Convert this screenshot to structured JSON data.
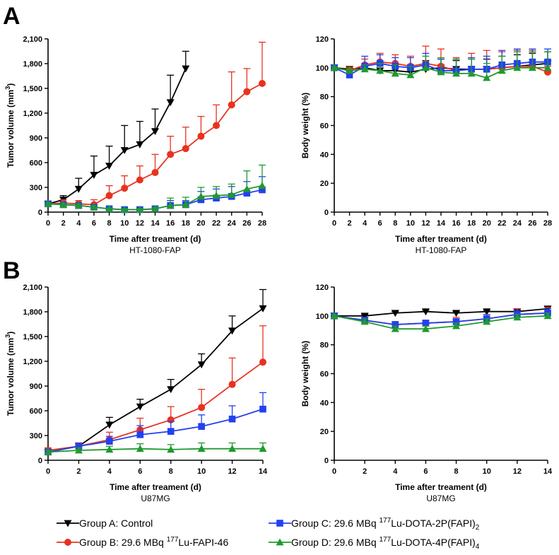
{
  "panels": [
    {
      "label": "A",
      "subtitle": "HT-1080-FAP"
    },
    {
      "label": "B",
      "subtitle": "U87MG"
    }
  ],
  "colors": {
    "A": "#000000",
    "B": "#e8321f",
    "C": "#2340ee",
    "D": "#1f9a2e"
  },
  "legend": {
    "A": {
      "main": "Group A: Control"
    },
    "B": {
      "main": "Group B: 29.6 MBq ",
      "sup": "177",
      "rest": "Lu-FAPI-46"
    },
    "C": {
      "main": "Group C: 29.6 MBq ",
      "sup": "177",
      "rest": "Lu-DOTA-2P(FAPI)",
      "sub": "2"
    },
    "D": {
      "main": "Group D: 29.6 MBq ",
      "sup": "177",
      "rest": "Lu-DOTA-4P(FAPI)",
      "sub": "4"
    }
  },
  "chart_data": [
    {
      "id": "tumorA",
      "type": "line",
      "xlabel": "Time after treament (d)",
      "ylabel": "Tumor volume (mm",
      "ylabel_sup": "3",
      "ylabel_end": ")",
      "subtitle": "HT-1080-FAP",
      "xlim": [
        0,
        28
      ],
      "ylim": [
        0,
        2100
      ],
      "xticks": [
        0,
        2,
        4,
        6,
        8,
        10,
        12,
        14,
        16,
        18,
        20,
        22,
        24,
        26,
        28
      ],
      "yticks": [
        0,
        300,
        600,
        900,
        1200,
        1500,
        1800,
        2100
      ],
      "ytick_labels": [
        "0",
        "300",
        "600",
        "900",
        "1,200",
        "1,500",
        "1,800",
        "2,100"
      ],
      "series": [
        {
          "group": "A",
          "marker": "triangle-down",
          "x": [
            0,
            2,
            4,
            6,
            8,
            10,
            12,
            14,
            16,
            18
          ],
          "y": [
            100,
            150,
            280,
            450,
            560,
            750,
            820,
            980,
            1330,
            1740
          ],
          "err": [
            10,
            50,
            130,
            230,
            240,
            300,
            280,
            270,
            330,
            210
          ]
        },
        {
          "group": "B",
          "marker": "circle",
          "x": [
            0,
            2,
            4,
            6,
            8,
            10,
            12,
            14,
            16,
            18,
            20,
            22,
            24,
            26,
            28
          ],
          "y": [
            100,
            110,
            100,
            90,
            200,
            290,
            390,
            480,
            700,
            770,
            920,
            1050,
            1300,
            1460,
            1560
          ],
          "err": [
            10,
            40,
            40,
            60,
            120,
            150,
            170,
            220,
            220,
            260,
            240,
            250,
            400,
            280,
            500
          ]
        },
        {
          "group": "C",
          "marker": "square",
          "x": [
            0,
            2,
            4,
            6,
            8,
            10,
            12,
            14,
            16,
            18,
            20,
            22,
            24,
            26,
            28
          ],
          "y": [
            100,
            90,
            80,
            60,
            40,
            30,
            30,
            40,
            80,
            90,
            150,
            170,
            190,
            230,
            270
          ],
          "err": [
            10,
            20,
            20,
            20,
            10,
            10,
            10,
            20,
            60,
            50,
            100,
            110,
            120,
            140,
            160
          ]
        },
        {
          "group": "D",
          "marker": "triangle-up",
          "x": [
            0,
            2,
            4,
            6,
            8,
            10,
            12,
            14,
            16,
            18,
            20,
            22,
            24,
            26,
            28
          ],
          "y": [
            100,
            90,
            80,
            60,
            40,
            30,
            30,
            40,
            80,
            90,
            190,
            200,
            210,
            280,
            320
          ],
          "err": [
            10,
            20,
            20,
            20,
            10,
            10,
            10,
            20,
            90,
            90,
            110,
            110,
            130,
            220,
            250
          ]
        }
      ]
    },
    {
      "id": "weightA",
      "type": "line",
      "xlabel": "Time after treament (d)",
      "ylabel": "Body weight (%)",
      "subtitle": "HT-1080-FAP",
      "xlim": [
        0,
        28
      ],
      "ylim": [
        0,
        120
      ],
      "xticks": [
        0,
        2,
        4,
        6,
        8,
        10,
        12,
        14,
        16,
        18,
        20,
        22,
        24,
        26,
        28
      ],
      "yticks": [
        0,
        20,
        40,
        60,
        80,
        100,
        120
      ],
      "ytick_labels": [
        "0",
        "20",
        "40",
        "60",
        "80",
        "100",
        "120"
      ],
      "series": [
        {
          "group": "A",
          "marker": "triangle-down",
          "x": [
            0,
            2,
            4,
            6,
            8,
            10,
            12,
            14,
            16,
            18,
            20,
            22,
            24,
            26,
            28
          ],
          "y": [
            100,
            99,
            100,
            98,
            98,
            97,
            99,
            100,
            99,
            99,
            99,
            100,
            101,
            102,
            103
          ],
          "err": [
            1,
            2,
            2,
            4,
            4,
            5,
            6,
            6,
            6,
            7,
            7,
            8,
            8,
            8,
            8
          ]
        },
        {
          "group": "B",
          "marker": "circle",
          "x": [
            0,
            2,
            4,
            6,
            8,
            10,
            12,
            14,
            16,
            18,
            20,
            22,
            24,
            26,
            28
          ],
          "y": [
            100,
            98,
            102,
            104,
            103,
            101,
            103,
            101,
            98,
            99,
            99,
            100,
            101,
            101,
            97
          ],
          "err": [
            1,
            3,
            4,
            6,
            6,
            7,
            12,
            12,
            9,
            11,
            13,
            11,
            11,
            11,
            4
          ]
        },
        {
          "group": "C",
          "marker": "square",
          "x": [
            0,
            2,
            4,
            6,
            8,
            10,
            12,
            14,
            16,
            18,
            20,
            22,
            24,
            26,
            28
          ],
          "y": [
            100,
            95,
            101,
            103,
            101,
            100,
            102,
            98,
            98,
            99,
            99,
            102,
            103,
            104,
            104
          ],
          "err": [
            1,
            3,
            7,
            6,
            6,
            7,
            8,
            8,
            8,
            8,
            9,
            10,
            10,
            9,
            9
          ]
        },
        {
          "group": "D",
          "marker": "triangle-up",
          "x": [
            0,
            2,
            4,
            6,
            8,
            10,
            12,
            14,
            16,
            18,
            20,
            22,
            24,
            26,
            28
          ],
          "y": [
            100,
            98,
            99,
            98,
            96,
            95,
            100,
            97,
            96,
            96,
            93,
            98,
            100,
            100,
            100
          ],
          "err": [
            1,
            2,
            3,
            5,
            6,
            6,
            8,
            10,
            10,
            10,
            10,
            10,
            11,
            11,
            11
          ]
        }
      ]
    },
    {
      "id": "tumorB",
      "type": "line",
      "xlabel": "Time after treament (d)",
      "ylabel": "Tumor volume (mm",
      "ylabel_sup": "3",
      "ylabel_end": ")",
      "subtitle": "U87MG",
      "xlim": [
        0,
        14
      ],
      "ylim": [
        0,
        2100
      ],
      "xticks": [
        0,
        2,
        4,
        6,
        8,
        10,
        12,
        14
      ],
      "yticks": [
        0,
        300,
        600,
        900,
        1200,
        1500,
        1800,
        2100
      ],
      "ytick_labels": [
        "0",
        "300",
        "600",
        "900",
        "1,200",
        "1,500",
        "1,800",
        "2,100"
      ],
      "series": [
        {
          "group": "A",
          "marker": "triangle-down",
          "x": [
            0,
            2,
            4,
            6,
            8,
            10,
            12,
            14
          ],
          "y": [
            100,
            170,
            430,
            650,
            860,
            1160,
            1570,
            1840
          ],
          "err": [
            20,
            40,
            90,
            90,
            120,
            130,
            180,
            230
          ]
        },
        {
          "group": "B",
          "marker": "circle",
          "x": [
            0,
            2,
            4,
            6,
            8,
            10,
            12,
            14
          ],
          "y": [
            120,
            170,
            250,
            370,
            490,
            640,
            920,
            1190
          ],
          "err": [
            30,
            40,
            90,
            140,
            160,
            220,
            320,
            440
          ]
        },
        {
          "group": "C",
          "marker": "square",
          "x": [
            0,
            2,
            4,
            6,
            8,
            10,
            12,
            14
          ],
          "y": [
            100,
            170,
            230,
            310,
            350,
            410,
            500,
            620
          ],
          "err": [
            20,
            30,
            60,
            110,
            120,
            140,
            160,
            200
          ]
        },
        {
          "group": "D",
          "marker": "triangle-up",
          "x": [
            0,
            2,
            4,
            6,
            8,
            10,
            12,
            14
          ],
          "y": [
            100,
            120,
            130,
            140,
            130,
            140,
            140,
            140
          ],
          "err": [
            20,
            30,
            40,
            60,
            60,
            70,
            70,
            70
          ]
        }
      ]
    },
    {
      "id": "weightB",
      "type": "line",
      "xlabel": "Time after treament (d)",
      "ylabel": "Body weight (%)",
      "subtitle": "U87MG",
      "xlim": [
        0,
        14
      ],
      "ylim": [
        0,
        120
      ],
      "xticks": [
        0,
        2,
        4,
        6,
        8,
        10,
        12,
        14
      ],
      "yticks": [
        0,
        20,
        40,
        60,
        80,
        100,
        120
      ],
      "ytick_labels": [
        "0",
        "20",
        "40",
        "60",
        "80",
        "100",
        "120"
      ],
      "series": [
        {
          "group": "A",
          "marker": "triangle-down",
          "x": [
            0,
            2,
            4,
            6,
            8,
            10,
            12,
            14
          ],
          "y": [
            100,
            100,
            102,
            103,
            102,
            103,
            103,
            105
          ],
          "err": [
            1,
            1,
            1,
            1,
            1,
            1,
            1,
            1
          ]
        },
        {
          "group": "B",
          "marker": "circle",
          "x": [
            0,
            2,
            4,
            6,
            8,
            10,
            12,
            14
          ],
          "y": [
            100,
            97,
            94,
            95,
            96,
            98,
            101,
            102
          ],
          "err": [
            1,
            2,
            2,
            2,
            3,
            3,
            4,
            4
          ]
        },
        {
          "group": "C",
          "marker": "square",
          "x": [
            0,
            2,
            4,
            6,
            8,
            10,
            12,
            14
          ],
          "y": [
            100,
            97,
            94,
            95,
            96,
            98,
            101,
            102
          ],
          "err": [
            1,
            2,
            2,
            2,
            2,
            3,
            3,
            3
          ]
        },
        {
          "group": "D",
          "marker": "triangle-up",
          "x": [
            0,
            2,
            4,
            6,
            8,
            10,
            12,
            14
          ],
          "y": [
            100,
            96,
            91,
            91,
            93,
            96,
            99,
            100
          ],
          "err": [
            1,
            2,
            2,
            2,
            2,
            2,
            2,
            2
          ]
        }
      ]
    }
  ]
}
